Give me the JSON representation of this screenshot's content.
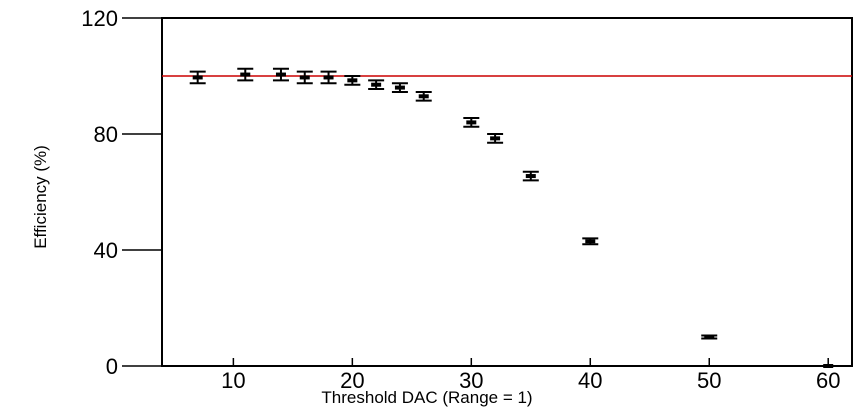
{
  "chart_data": {
    "type": "scatter",
    "xlabel": "Threshold DAC  (Range = 1)",
    "ylabel": "Efficiency (%)",
    "xlim": [
      4,
      62
    ],
    "ylim": [
      0,
      120
    ],
    "x_ticks": [
      10,
      20,
      30,
      40,
      50,
      60
    ],
    "y_ticks": [
      0,
      40,
      80,
      120
    ],
    "grid": false,
    "reference_line": {
      "y": 100,
      "color": "#cc0000"
    },
    "series": [
      {
        "marker_color": "#000000",
        "points": [
          {
            "x": 7,
            "y": 99.5,
            "err": 2.0
          },
          {
            "x": 11,
            "y": 100.5,
            "err": 2.0
          },
          {
            "x": 14,
            "y": 100.5,
            "err": 2.0
          },
          {
            "x": 16,
            "y": 99.5,
            "err": 2.0
          },
          {
            "x": 18,
            "y": 99.5,
            "err": 2.0
          },
          {
            "x": 20,
            "y": 98.5,
            "err": 1.5
          },
          {
            "x": 22,
            "y": 97.0,
            "err": 1.5
          },
          {
            "x": 24,
            "y": 96.0,
            "err": 1.5
          },
          {
            "x": 26,
            "y": 93.0,
            "err": 1.5
          },
          {
            "x": 30,
            "y": 84.0,
            "err": 1.5
          },
          {
            "x": 32,
            "y": 78.5,
            "err": 1.5
          },
          {
            "x": 35,
            "y": 65.5,
            "err": 1.5
          },
          {
            "x": 40,
            "y": 43.0,
            "err": 1.0
          },
          {
            "x": 50,
            "y": 10.0,
            "err": 0.5
          },
          {
            "x": 60,
            "y": 0.0,
            "err": 0.0
          }
        ]
      }
    ]
  }
}
